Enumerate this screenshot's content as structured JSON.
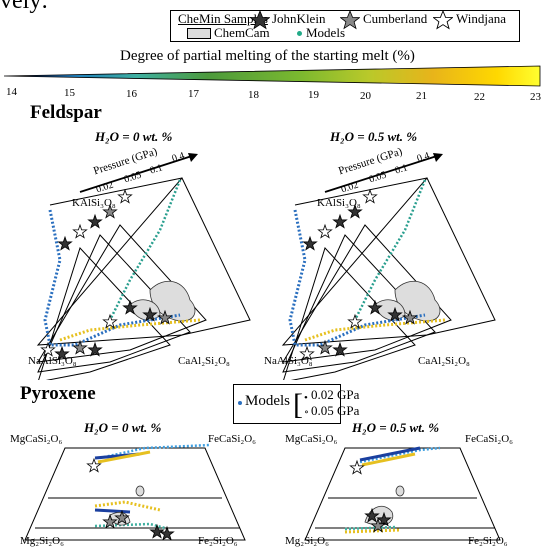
{
  "header_fragment": "vely:",
  "legend": {
    "title": "CheMin Samples",
    "samples": [
      "JohnKlein",
      "Cumberland",
      "Windjana"
    ],
    "chemcam": "ChemCam",
    "models": "Models",
    "colors": {
      "johnklein": "#333333",
      "cumberland": "#888888",
      "windjana": "#ffffff",
      "models": "#22aa88"
    }
  },
  "scale": {
    "title": "Degree of partial melting of the starting melt (%)",
    "ticks": [
      "14",
      "15",
      "16",
      "17",
      "18",
      "19",
      "20",
      "21",
      "22",
      "23"
    ],
    "colors": [
      "#1a1f6b",
      "#1f7fbf",
      "#3fb0a0",
      "#4c9a3c",
      "#7ab82f",
      "#b9c92a",
      "#e8b41a",
      "#ffd800",
      "#ffff30"
    ]
  },
  "feldspar": {
    "title": "Feldspar",
    "panels": [
      {
        "title": "H₂O = 0 wt. %"
      },
      {
        "title": "H₂O = 0.5 wt. %"
      }
    ],
    "pressure_label": "Pressure (GPa)",
    "pressure_ticks": [
      "0.02",
      "0.05",
      "0.1",
      "0.4"
    ],
    "corners": {
      "top": "KAlSi₃O₈",
      "left": "NaAlSi₃O₈",
      "right": "CaAl₂Si₂O₈"
    }
  },
  "pyroxene": {
    "title": "Pyroxene",
    "panels": [
      {
        "title": "H₂O = 0 wt. %"
      },
      {
        "title": "H₂O = 0.5 wt. %"
      }
    ],
    "models_label": "Models",
    "pressure_entries": [
      "0.02 GPa",
      "0.05 GPa"
    ],
    "corners": {
      "tl": "MgCaSi₂O₆",
      "tr": "FeCaSi₂O₆",
      "bl": "Mg₂Si₂O₆",
      "br": "Fe₂Si₂O₆"
    }
  }
}
